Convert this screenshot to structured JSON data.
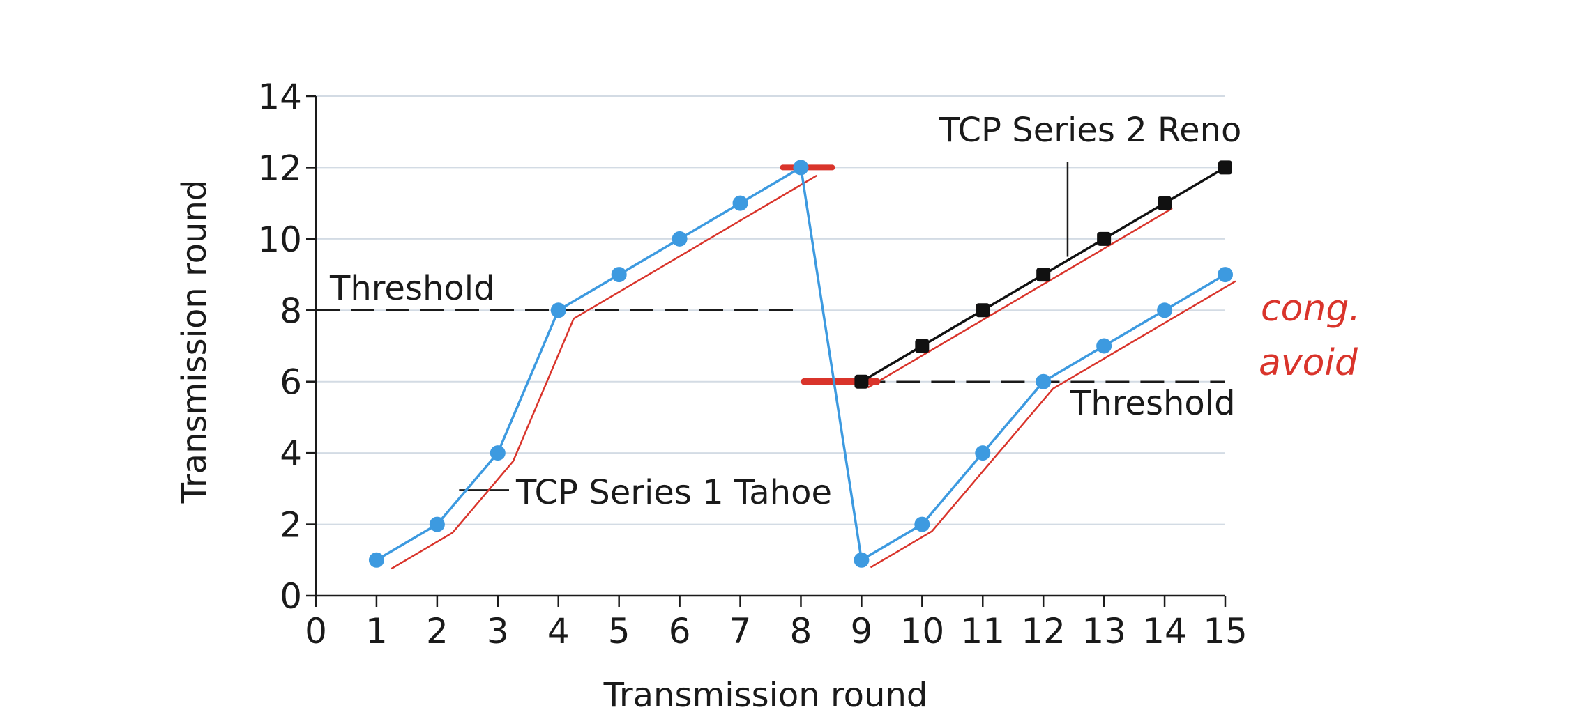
{
  "chart_data": {
    "type": "line",
    "xlabel": "Transmission round",
    "ylabel": "Transmission round",
    "xlim": [
      0,
      15
    ],
    "ylim": [
      0,
      14
    ],
    "xticks": [
      "0",
      "1",
      "2",
      "3",
      "4",
      "5",
      "6",
      "7",
      "8",
      "9",
      "10",
      "11",
      "12",
      "13",
      "14",
      "15"
    ],
    "yticks": [
      "0",
      "2",
      "4",
      "6",
      "8",
      "10",
      "12",
      "14"
    ],
    "grid": "horizontal",
    "series": [
      {
        "name": "TCP Series 1 Tahoe",
        "color": "#3d9ae0",
        "marker": "circle",
        "x": [
          1,
          2,
          3,
          4,
          5,
          6,
          7,
          8,
          9,
          10,
          11,
          12,
          13,
          14,
          15
        ],
        "y": [
          1,
          2,
          4,
          8,
          9,
          10,
          11,
          12,
          1,
          2,
          4,
          6,
          7,
          8,
          9
        ]
      },
      {
        "name": "TCP Series 2 Reno",
        "color": "#111111",
        "marker": "square",
        "x": [
          9,
          10,
          11,
          12,
          13,
          14,
          15
        ],
        "y": [
          6,
          7,
          8,
          9,
          10,
          11,
          12
        ]
      }
    ],
    "thresholds": [
      {
        "label": "Threshold",
        "y": 8,
        "x_from": 0,
        "x_to": 8
      },
      {
        "label": "Threshold",
        "y": 6,
        "x_from": 9,
        "x_to": 15
      }
    ],
    "annotations": [
      {
        "text": "TCP Series 1 Tahoe",
        "points_to_series": "TCP Series 1 Tahoe",
        "at_x": 2.5
      },
      {
        "text": "TCP Series 2 Reno",
        "points_to_series": "TCP Series 2 Reno",
        "at_x": 12.4
      }
    ],
    "handwritten_note": {
      "text": "cong. avoid",
      "line1": "cong.",
      "line2": "avoid",
      "color": "#d9342b"
    }
  }
}
